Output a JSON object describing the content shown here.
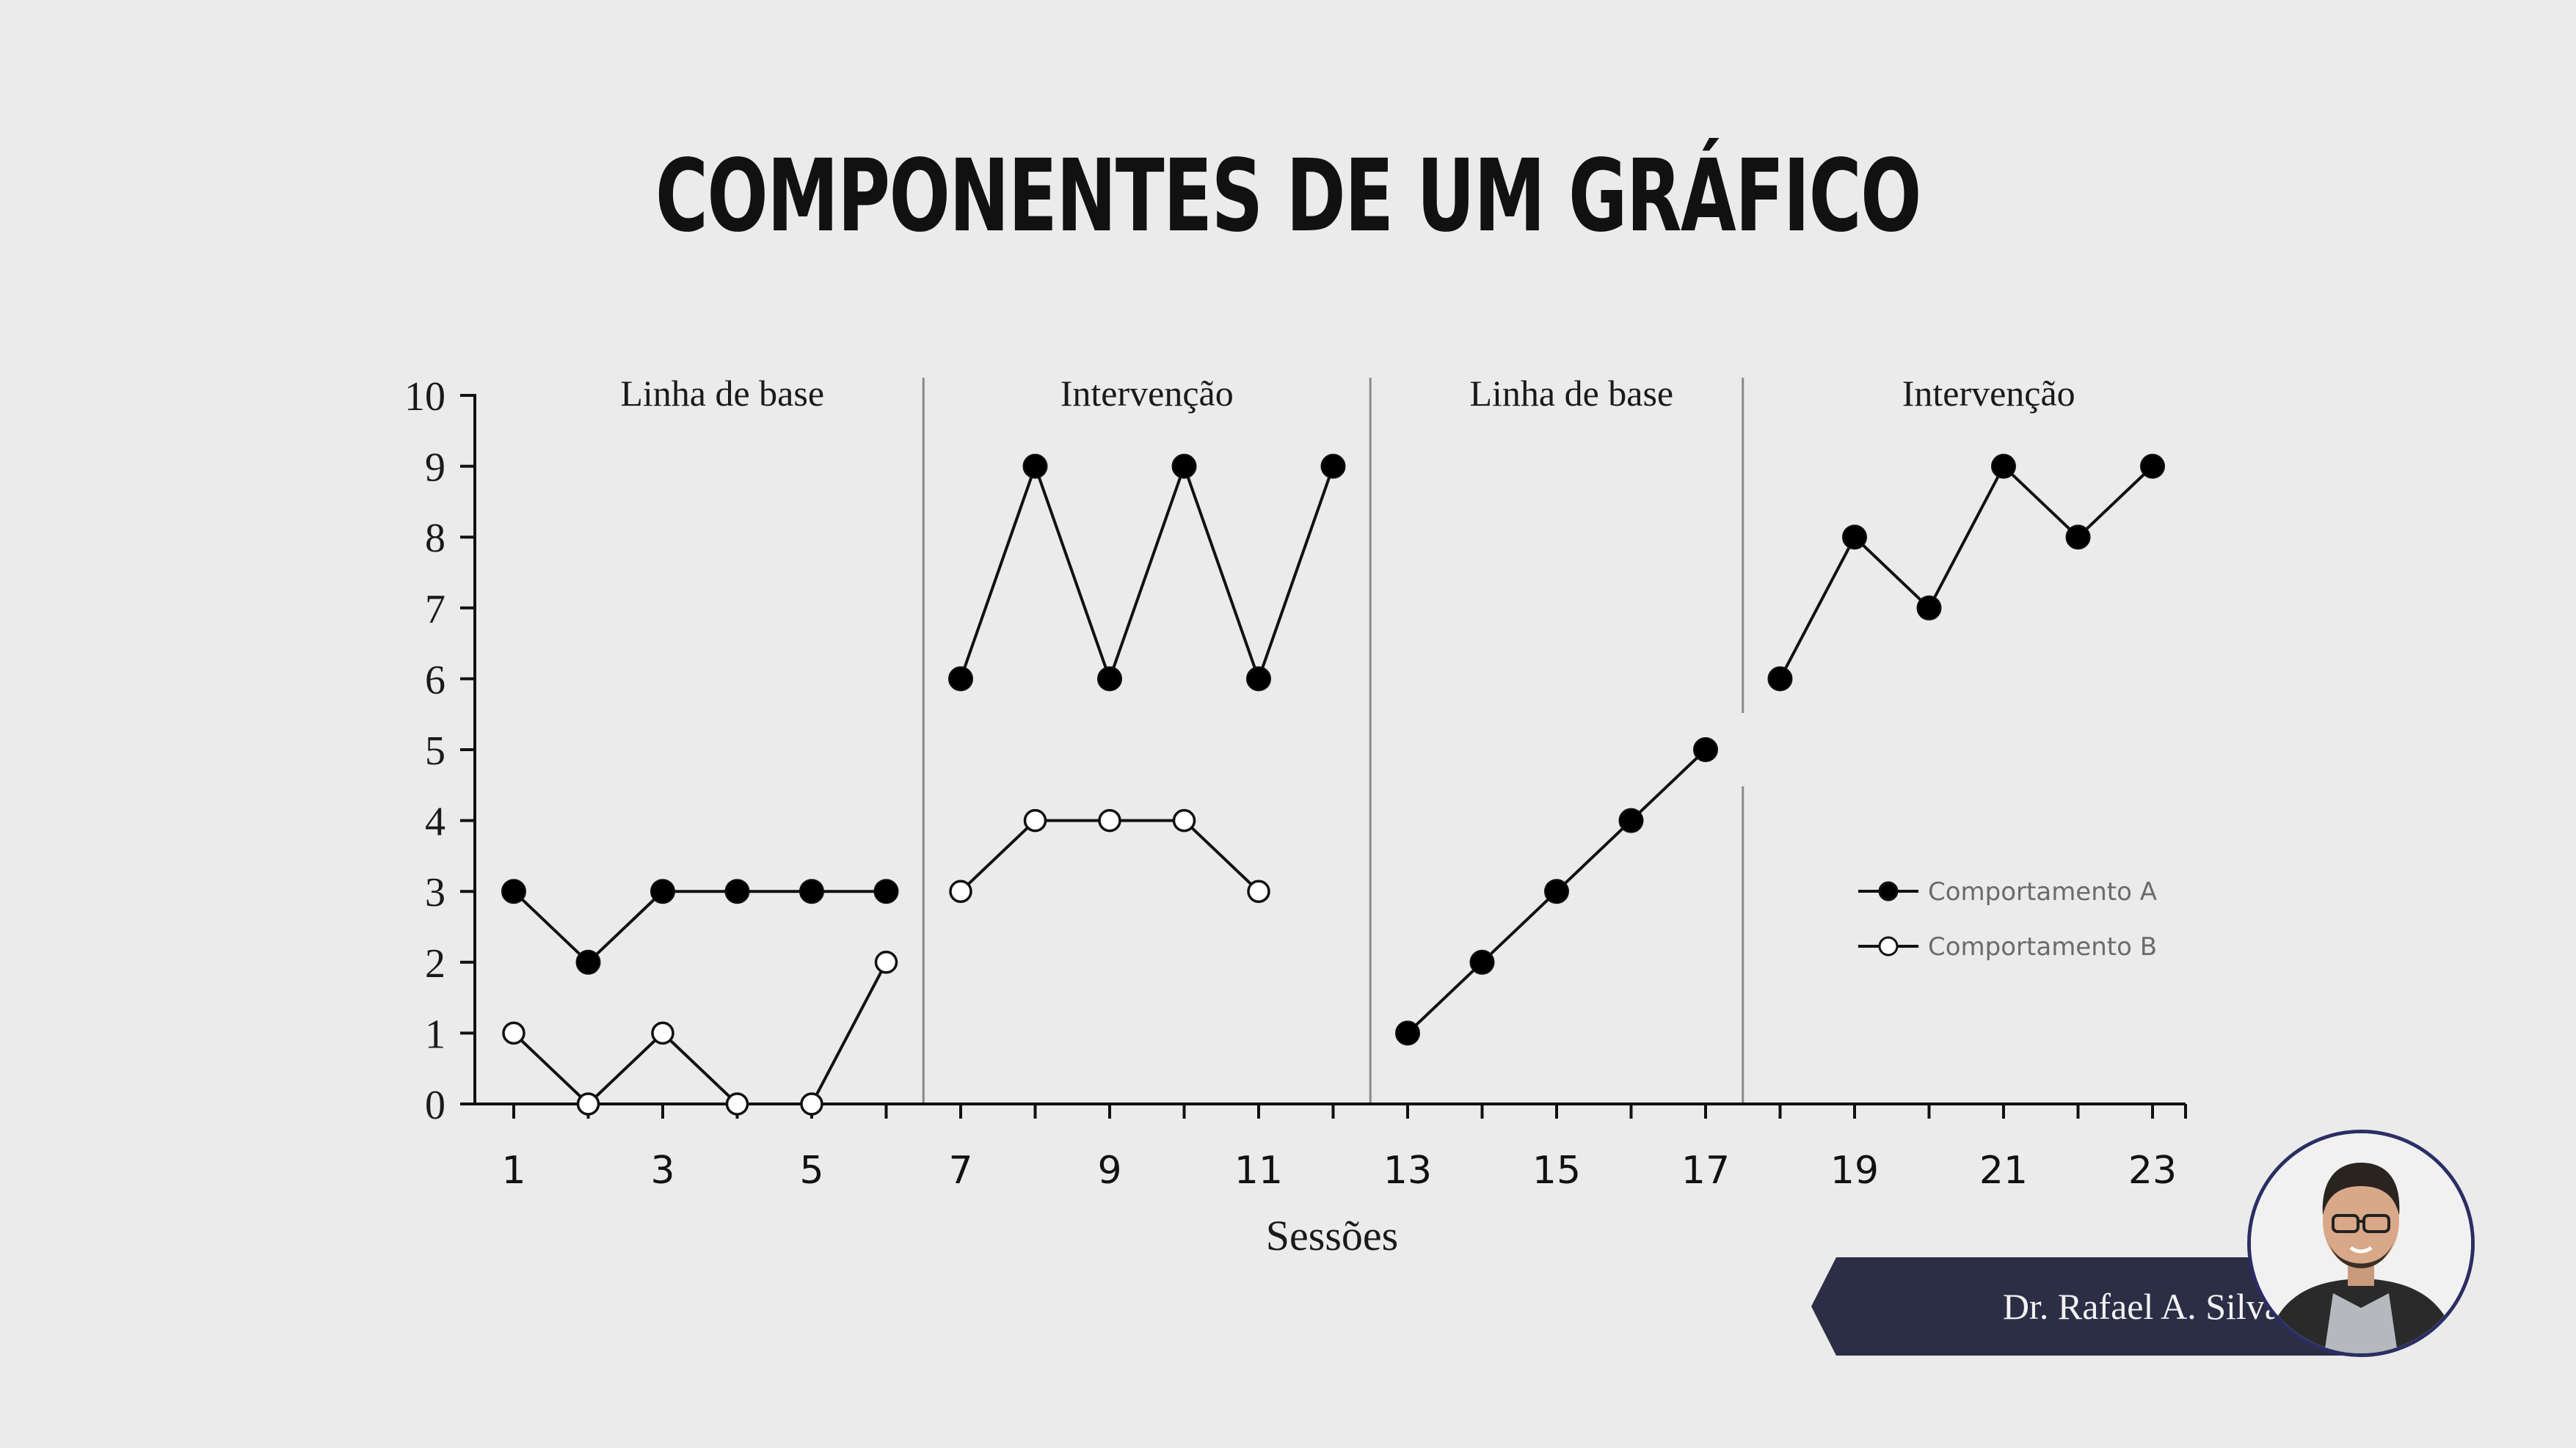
{
  "title": "COMPONENTES DE UM GRÁFICO",
  "presenter": {
    "name": "Dr. Rafael A. Silva"
  },
  "colors": {
    "background": "#ebebeb",
    "plate": "#2b2e45",
    "avatar_border": "#2b2e64"
  },
  "chart_data": {
    "type": "line",
    "xlabel": "Sessões",
    "ylabel": "",
    "xlim": [
      0.3,
      23.5
    ],
    "ylim": [
      0,
      10
    ],
    "y_ticks": [
      "0",
      "1",
      "2",
      "3",
      "4",
      "5",
      "6",
      "7",
      "8",
      "9",
      "10"
    ],
    "x_ticks": [
      "1",
      "3",
      "5",
      "7",
      "9",
      "11",
      "13",
      "15",
      "17",
      "19",
      "21",
      "23"
    ],
    "x_tick_values": [
      1,
      3,
      5,
      7,
      9,
      11,
      13,
      15,
      17,
      19,
      21,
      23
    ],
    "phase_changes": [
      6.5,
      12.5,
      17.5
    ],
    "phase_labels": [
      "Linha de base",
      "Intervenção",
      "Linha de base",
      "Intervenção"
    ],
    "phase_label_x": [
      3.8,
      9.5,
      15.2,
      20.8
    ],
    "legend_position": "right, middle",
    "series": [
      {
        "name": "Comportamento A",
        "marker": "filled",
        "segments": [
          {
            "x": [
              1,
              2,
              3,
              4,
              5,
              6
            ],
            "y": [
              3,
              2,
              3,
              3,
              3,
              3
            ]
          },
          {
            "x": [
              7,
              8,
              9,
              10,
              11,
              12
            ],
            "y": [
              6,
              9,
              6,
              9,
              6,
              9
            ]
          },
          {
            "x": [
              13,
              14,
              15,
              16,
              17
            ],
            "y": [
              1,
              2,
              3,
              4,
              5
            ]
          },
          {
            "x": [
              18,
              19,
              20,
              21,
              22,
              23
            ],
            "y": [
              6,
              8,
              7,
              9,
              8,
              9
            ]
          }
        ]
      },
      {
        "name": "Comportamento B",
        "marker": "open",
        "segments": [
          {
            "x": [
              1,
              2,
              3,
              4,
              5,
              6
            ],
            "y": [
              1,
              0,
              1,
              0,
              0,
              2
            ]
          },
          {
            "x": [
              7,
              8,
              9,
              10,
              11
            ],
            "y": [
              3,
              4,
              4,
              4,
              3
            ]
          }
        ]
      }
    ]
  }
}
